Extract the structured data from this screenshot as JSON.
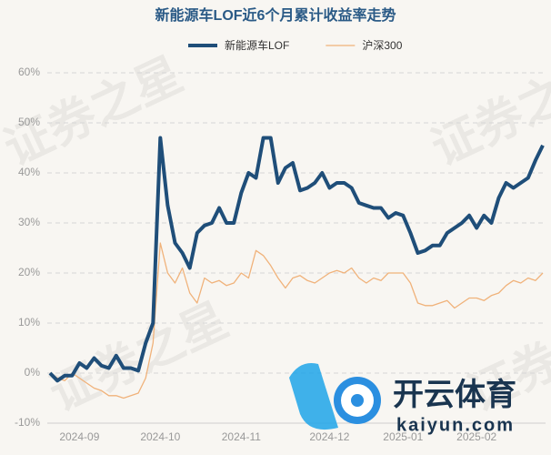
{
  "chart_data": {
    "type": "line",
    "title": "新能源车LOF近6个月累计收益率走势",
    "watermark": "证券之星",
    "logo_text": "开云体育",
    "logo_url": "kaiyun.com",
    "categories": [
      null,
      null,
      null,
      null,
      "2024-09",
      null,
      null,
      null,
      null,
      null,
      null,
      null,
      null,
      null,
      null,
      "2024-10",
      null,
      null,
      null,
      null,
      null,
      null,
      null,
      null,
      null,
      null,
      "2024-11",
      null,
      null,
      null,
      null,
      null,
      null,
      null,
      null,
      null,
      null,
      null,
      "2024-12",
      null,
      null,
      null,
      null,
      null,
      null,
      null,
      null,
      null,
      "2025-01",
      null,
      null,
      null,
      null,
      null,
      null,
      null,
      null,
      null,
      "2025-02",
      null,
      null,
      null,
      null,
      null,
      null,
      null,
      null,
      null
    ],
    "series": [
      {
        "name": "新能源车LOF",
        "color": "#1f4e79",
        "width": 4,
        "values": [
          0,
          -1.5,
          -0.5,
          -0.5,
          2,
          1,
          3,
          1.5,
          1,
          3.5,
          1,
          1,
          0.5,
          6,
          10,
          47,
          33.5,
          26,
          24,
          21,
          28,
          29.5,
          30,
          33,
          30,
          30,
          36,
          40,
          39,
          47,
          47,
          38,
          41,
          42,
          36.5,
          37,
          38,
          40,
          37,
          38,
          38,
          37,
          34,
          33.5,
          33,
          33,
          31,
          32,
          31.5,
          28,
          24,
          24.5,
          25.5,
          25.5,
          28,
          29,
          30,
          31.5,
          29,
          31.5,
          30,
          35,
          38,
          37,
          38,
          39,
          42.5,
          45.5
        ]
      },
      {
        "name": "沪深300",
        "color": "#f0b27a",
        "width": 1.3,
        "values": [
          0,
          -1,
          -1.5,
          0,
          -1,
          -2,
          -3,
          -3.5,
          -4.5,
          -4.5,
          -5,
          -4.5,
          -4,
          -1,
          6,
          26,
          20,
          18,
          21,
          16,
          14,
          19,
          18,
          18.5,
          17.5,
          18,
          20,
          19,
          24.5,
          23.5,
          21.5,
          19,
          17,
          19,
          19.5,
          18.5,
          18,
          19,
          20,
          20.5,
          20,
          21,
          19,
          18,
          19,
          18.5,
          20,
          20,
          20,
          18,
          14,
          13.5,
          13.5,
          14,
          14.5,
          13,
          14,
          15,
          15,
          14.5,
          15.5,
          16,
          17.5,
          18.5,
          18,
          19,
          18.5,
          20
        ]
      }
    ],
    "ylim": [
      -10,
      60
    ],
    "yticks": [
      {
        "value": -10,
        "label": "-10%"
      },
      {
        "value": 0,
        "label": "0%"
      },
      {
        "value": 10,
        "label": "10%"
      },
      {
        "value": 20,
        "label": "20%"
      },
      {
        "value": 30,
        "label": "30%"
      },
      {
        "value": 40,
        "label": "40%"
      },
      {
        "value": 50,
        "label": "50%"
      },
      {
        "value": 60,
        "label": "60%"
      }
    ],
    "grid": true
  }
}
